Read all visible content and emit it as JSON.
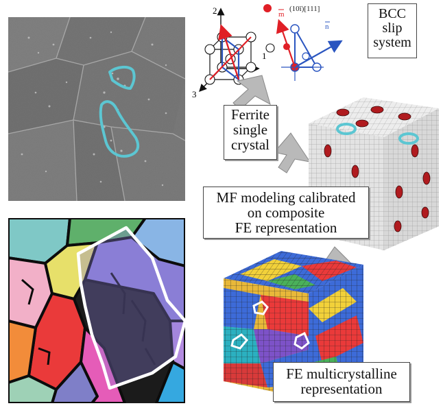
{
  "labels": {
    "bcc_slip_system": [
      "BCC",
      "slip",
      "system"
    ],
    "ferrite_single_crystal": [
      "Ferrite",
      "single",
      "crystal"
    ],
    "mf_modeling": [
      "MF modeling calibrated",
      "on composite",
      "FE representation"
    ],
    "fe_multicrystalline": [
      "FE multicrystalline",
      "representation"
    ]
  },
  "axes": {
    "axis_1": "1",
    "axis_2": "2",
    "axis_3": "3"
  },
  "slip_notation": {
    "miller_plane_system": "(10ī)[111]",
    "vector_m": "m",
    "vector_n": "n"
  },
  "colors": {
    "outline_cyan": "#5cc6d2",
    "outline_white": "#ffffff",
    "vector_red": "#e01f26",
    "vector_blue": "#2a55c0",
    "arrow_gray": "#b9b9b9",
    "mesh_gray": "#e6e6e6"
  }
}
